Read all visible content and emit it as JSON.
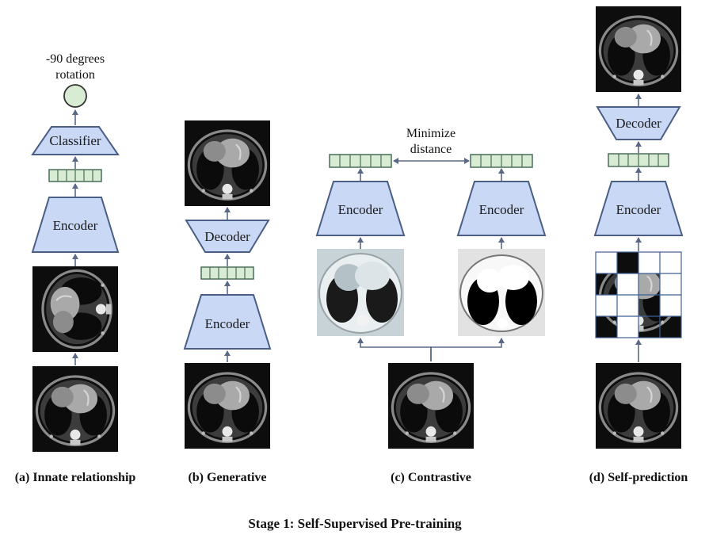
{
  "figure": {
    "title": "Stage 1:  Self-Supervised Pre-training",
    "panel_a": {
      "caption": "(a) Innate relationship",
      "output_label_line1": "-90 degrees",
      "output_label_line2": "rotation",
      "classifier_label": "Classifier",
      "encoder_label": "Encoder"
    },
    "panel_b": {
      "caption": "(b) Generative",
      "decoder_label": "Decoder",
      "encoder_label": "Encoder"
    },
    "panel_c": {
      "caption": "(c) Contrastive",
      "distance_label_line1": "Minimize",
      "distance_label_line2": "distance",
      "encoder_left_label": "Encoder",
      "encoder_right_label": "Encoder"
    },
    "panel_d": {
      "caption": "(d) Self-prediction",
      "decoder_label": "Decoder",
      "encoder_label": "Encoder"
    }
  },
  "colors": {
    "block_fill": "#c9d8f5",
    "block_stroke": "#4a5e86",
    "vector_fill": "#d8ebd3",
    "arrow": "#5a6a86"
  },
  "icons": [
    "ct-scan-image",
    "feature-vector-icon",
    "output-node-icon"
  ]
}
